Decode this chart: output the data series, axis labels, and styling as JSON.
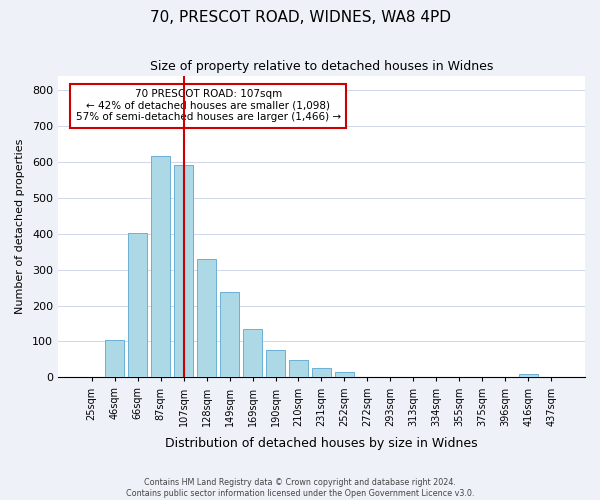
{
  "title": "70, PRESCOT ROAD, WIDNES, WA8 4PD",
  "subtitle": "Size of property relative to detached houses in Widnes",
  "xlabel": "Distribution of detached houses by size in Widnes",
  "ylabel": "Number of detached properties",
  "bar_labels": [
    "25sqm",
    "46sqm",
    "66sqm",
    "87sqm",
    "107sqm",
    "128sqm",
    "149sqm",
    "169sqm",
    "190sqm",
    "210sqm",
    "231sqm",
    "252sqm",
    "272sqm",
    "293sqm",
    "313sqm",
    "334sqm",
    "355sqm",
    "375sqm",
    "396sqm",
    "416sqm",
    "437sqm"
  ],
  "bar_values": [
    0,
    105,
    402,
    615,
    590,
    330,
    237,
    135,
    76,
    49,
    25,
    15,
    0,
    0,
    0,
    0,
    0,
    0,
    0,
    8,
    0
  ],
  "bar_color": "#add8e6",
  "bar_edge_color": "#6ab0d4",
  "vline_index": 4,
  "vline_color": "#cc0000",
  "annotation_title": "70 PRESCOT ROAD: 107sqm",
  "annotation_line1": "← 42% of detached houses are smaller (1,098)",
  "annotation_line2": "57% of semi-detached houses are larger (1,466) →",
  "annotation_box_color": "#ffffff",
  "annotation_box_edge": "#cc0000",
  "ylim": [
    0,
    840
  ],
  "yticks": [
    0,
    100,
    200,
    300,
    400,
    500,
    600,
    700,
    800
  ],
  "footer_line1": "Contains HM Land Registry data © Crown copyright and database right 2024.",
  "footer_line2": "Contains public sector information licensed under the Open Government Licence v3.0.",
  "bg_color": "#eef2f8",
  "plot_bg_color": "#ffffff",
  "grid_color": "#d0d8e8"
}
